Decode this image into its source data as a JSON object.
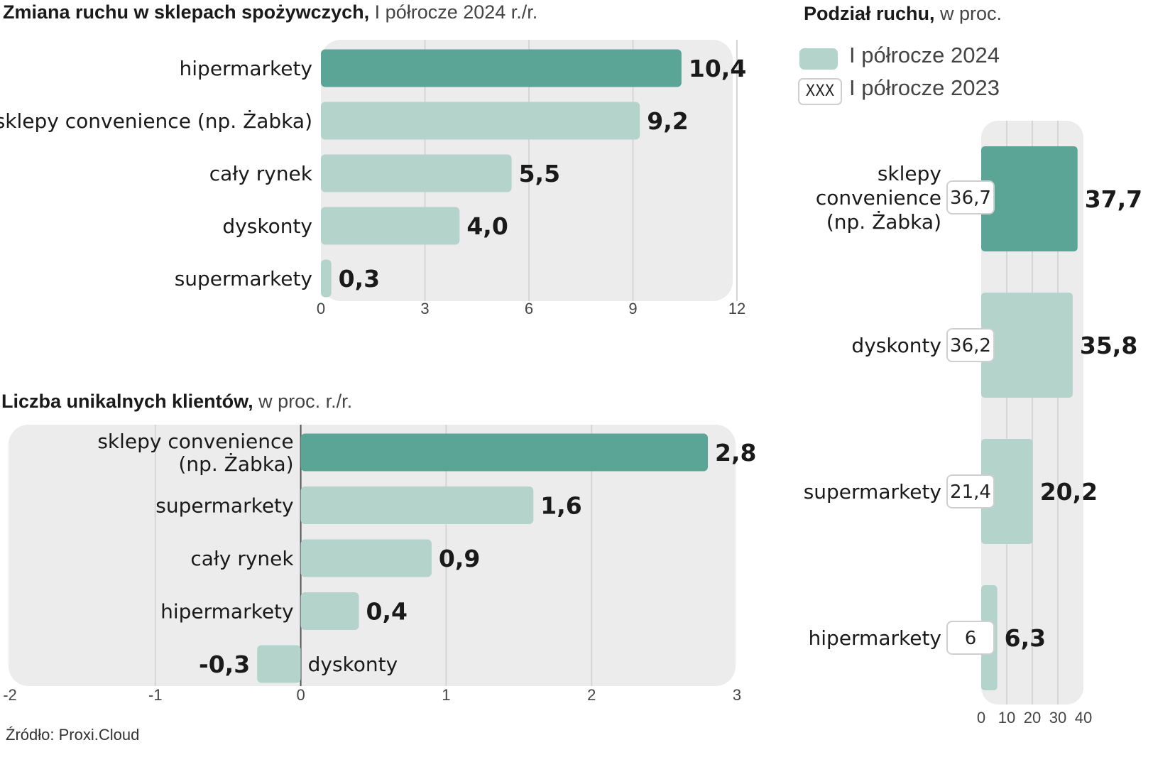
{
  "titles": {
    "chart1_bold": "Zmiana ruchu w sklepach spożywczych,",
    "chart1_light": " I półrocze 2024 r./r.",
    "chart2_bold": "Liczba unikalnych klientów,",
    "chart2_light": " w proc. r./r.",
    "chart3_bold": "Podział ruchu,",
    "chart3_light": " w proc."
  },
  "legend": {
    "label_2024": "I półrocze 2024",
    "label_2023": "I półrocze 2023",
    "sample_box": "XXX"
  },
  "source": "Źródło: Proxi.Cloud",
  "colors": {
    "highlight": "#5ba597",
    "bar": "#b3d3cb",
    "panel": "#ececec",
    "grid": "#d6d6d6"
  },
  "chart_data": [
    {
      "type": "bar",
      "orientation": "horizontal",
      "title": "Zmiana ruchu w sklepach spożywczych, I półrocze 2024 r./r.",
      "categories": [
        "hipermarkety",
        "sklepy convenience (np. Żabka)",
        "cały rynek",
        "dyskonty",
        "supermarkety"
      ],
      "values": [
        10.4,
        9.2,
        5.5,
        4.0,
        0.3
      ],
      "labels": [
        "10,4",
        "9,2",
        "5,5",
        "4,0",
        "0,3"
      ],
      "highlight_index": 0,
      "xlim": [
        0,
        12
      ],
      "ticks": [
        0,
        3,
        6,
        9,
        12
      ],
      "grid": true
    },
    {
      "type": "bar",
      "orientation": "horizontal",
      "title": "Liczba unikalnych klientów, w proc. r./r.",
      "categories": [
        "sklepy convenience (np. Żabka)",
        "supermarkety",
        "cały rynek",
        "hipermarkety",
        "dyskonty"
      ],
      "values": [
        2.8,
        1.6,
        0.9,
        0.4,
        -0.3
      ],
      "labels": [
        "2,8",
        "1,6",
        "0,9",
        "0,4",
        "-0,3"
      ],
      "highlight_index": 0,
      "xlim": [
        -2,
        3
      ],
      "ticks": [
        -2,
        -1,
        0,
        1,
        2,
        3
      ],
      "grid": true
    },
    {
      "type": "bar",
      "orientation": "horizontal",
      "title": "Podział ruchu, w proc.",
      "categories": [
        "sklepy convenience (np. Żabka)",
        "dyskonty",
        "supermarkety",
        "hipermarkety"
      ],
      "series": [
        {
          "name": "I półrocze 2024",
          "values": [
            37.7,
            35.8,
            20.2,
            6.3
          ],
          "labels": [
            "37,7",
            "35,8",
            "20,2",
            "6,3"
          ]
        },
        {
          "name": "I półrocze 2023",
          "values": [
            36.7,
            36.2,
            21.4,
            6
          ],
          "labels": [
            "36,7",
            "36,2",
            "21,4",
            "6"
          ]
        }
      ],
      "highlight_index": 0,
      "xlim": [
        0,
        40
      ],
      "ticks": [
        0,
        10,
        20,
        30,
        40
      ],
      "legend": "top",
      "grid": true
    }
  ]
}
